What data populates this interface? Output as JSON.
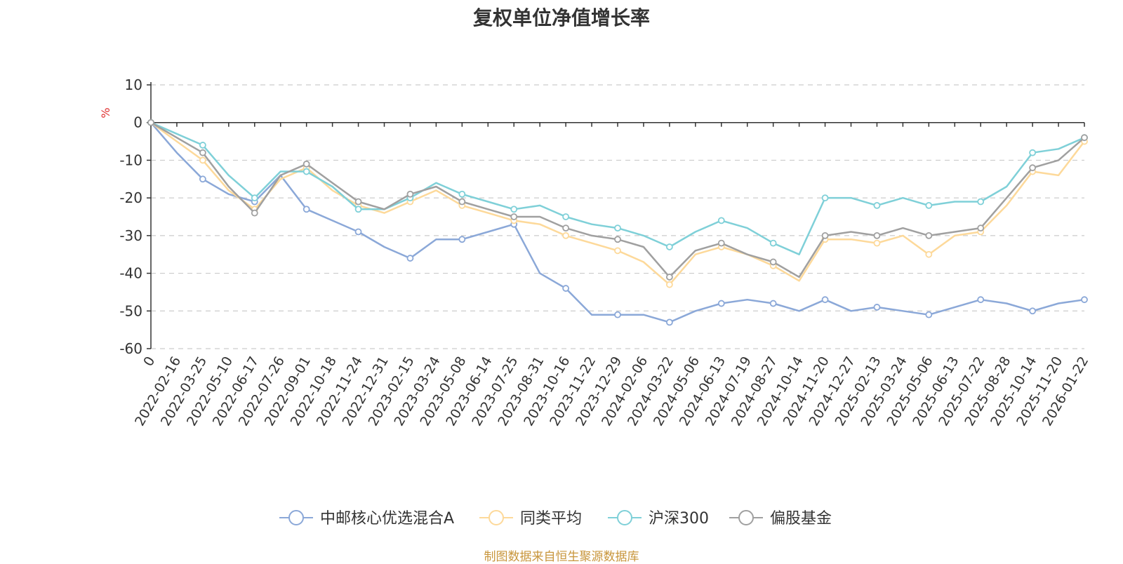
{
  "chart_data": {
    "type": "line",
    "title": "复权单位净值增长率",
    "ylabel": "%",
    "xlabel": "",
    "ylim": [
      -60,
      10
    ],
    "yticks": [
      10,
      0,
      -10,
      -20,
      -30,
      -40,
      -50,
      -60
    ],
    "grid": true,
    "legend_position": "bottom",
    "x": [
      "0",
      "2022-02-16",
      "2022-03-25",
      "2022-05-10",
      "2022-06-17",
      "2022-07-26",
      "2022-09-01",
      "2022-10-18",
      "2022-11-24",
      "2022-12-31",
      "2023-02-15",
      "2023-03-24",
      "2023-05-08",
      "2023-06-14",
      "2023-07-25",
      "2023-08-31",
      "2023-10-16",
      "2023-11-22",
      "2023-12-29",
      "2024-02-06",
      "2024-03-22",
      "2024-05-06",
      "2024-06-13",
      "2024-07-19",
      "2024-08-27",
      "2024-10-14",
      "2024-11-20",
      "2024-12-27",
      "2025-02-13",
      "2025-03-24",
      "2025-05-06",
      "2025-06-13",
      "2025-07-22",
      "2025-08-28",
      "2025-10-14",
      "2025-11-20",
      "2026-01-22"
    ],
    "series": [
      {
        "name": "中邮核心优选混合A",
        "color": "#8ba8d8",
        "values": [
          0,
          -8,
          -15,
          -19,
          -21,
          -14,
          -23,
          -26,
          -29,
          -33,
          -36,
          -31,
          -31,
          -29,
          -27,
          -40,
          -44,
          -51,
          -51,
          -51,
          -53,
          -50,
          -48,
          -47,
          -48,
          -50,
          -47,
          -50,
          -49,
          -50,
          -51,
          -49,
          -47,
          -48,
          -50,
          -48,
          -47
        ]
      },
      {
        "name": "同类平均",
        "color": "#fdd99a",
        "values": [
          0,
          -5,
          -10,
          -18,
          -23,
          -15,
          -12,
          -18,
          -22,
          -24,
          -21,
          -18,
          -22,
          -24,
          -26,
          -27,
          -30,
          -32,
          -34,
          -37,
          -43,
          -35,
          -33,
          -35,
          -38,
          -42,
          -31,
          -31,
          -32,
          -30,
          -35,
          -30,
          -29,
          -22,
          -13,
          -14,
          -5
        ]
      },
      {
        "name": "沪深300",
        "color": "#7fd0d8",
        "values": [
          0,
          -3,
          -6,
          -14,
          -20,
          -13,
          -13,
          -17,
          -23,
          -23,
          -20,
          -16,
          -19,
          -21,
          -23,
          -22,
          -25,
          -27,
          -28,
          -30,
          -33,
          -29,
          -26,
          -28,
          -32,
          -35,
          -20,
          -20,
          -22,
          -20,
          -22,
          -21,
          -21,
          -17,
          -8,
          -7,
          -4
        ]
      },
      {
        "name": "偏股基金",
        "color": "#a0a0a0",
        "values": [
          0,
          -4,
          -8,
          -17,
          -24,
          -14,
          -11,
          -16,
          -21,
          -23,
          -19,
          -17,
          -21,
          -23,
          -25,
          -25,
          -28,
          -30,
          -31,
          -33,
          -41,
          -34,
          -32,
          -35,
          -37,
          -41,
          -30,
          -29,
          -30,
          -28,
          -30,
          -29,
          -28,
          -20,
          -12,
          -10,
          -4
        ]
      }
    ]
  },
  "credit_text": "制图数据来自恒生聚源数据库",
  "credit_color": "#c8963c"
}
